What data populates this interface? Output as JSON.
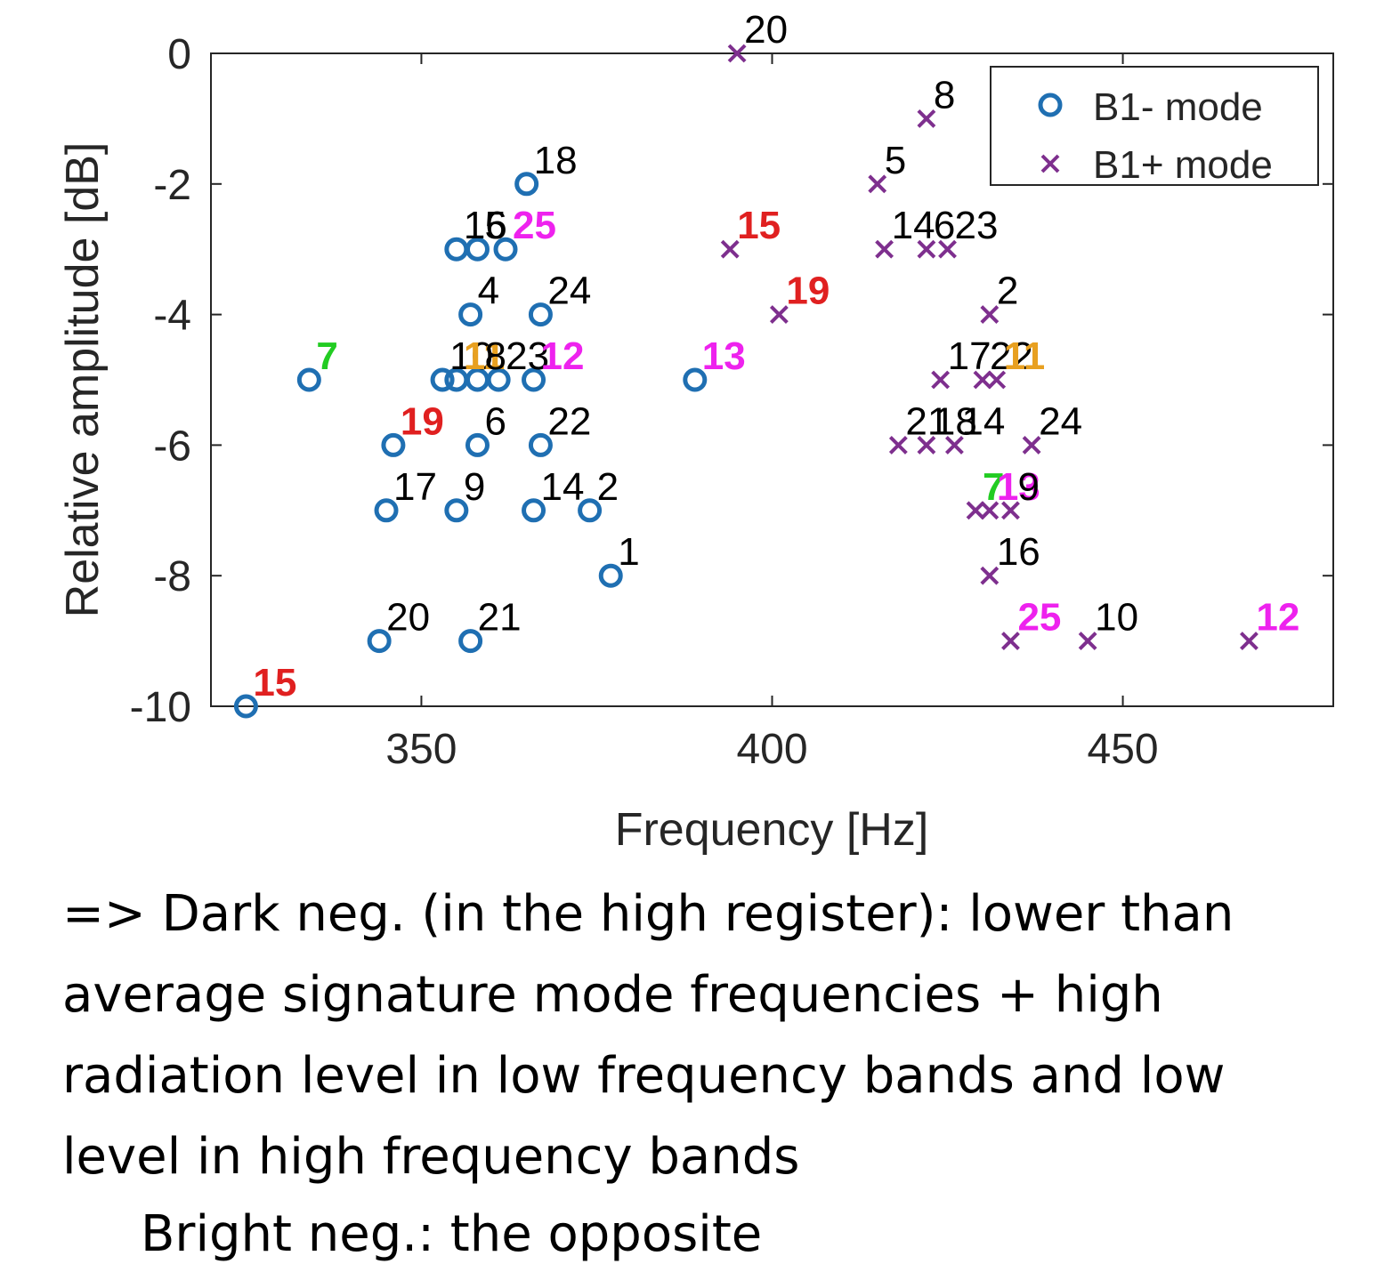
{
  "chart_data": {
    "type": "scatter",
    "xlabel": "Frequency [Hz]",
    "ylabel": "Relative amplitude [dB]",
    "xlim": [
      320,
      480
    ],
    "ylim": [
      -10,
      0
    ],
    "xticks": [
      350,
      400,
      450
    ],
    "yticks": [
      0,
      -2,
      -4,
      -6,
      -8,
      -10
    ],
    "grid": false,
    "legend_position": "top-right",
    "series": [
      {
        "name": "B1- mode",
        "marker": "circle",
        "color": "#1f6fb2",
        "points": [
          {
            "x": 325,
            "y": -10,
            "label": "15",
            "label_color": "#e02020",
            "label_bold": true
          },
          {
            "x": 334,
            "y": -5,
            "label": "7",
            "label_color": "#22cc22",
            "label_bold": true
          },
          {
            "x": 345,
            "y": -7,
            "label": "17",
            "label_color": "#000000",
            "label_bold": false
          },
          {
            "x": 346,
            "y": -6,
            "label": "19",
            "label_color": "#e02020",
            "label_bold": true
          },
          {
            "x": 344,
            "y": -9,
            "label": "20",
            "label_color": "#000000",
            "label_bold": false
          },
          {
            "x": 353,
            "y": -5,
            "label": "10",
            "label_color": "#000000",
            "label_bold": false
          },
          {
            "x": 355,
            "y": -5,
            "label": "11",
            "label_color": "#e8a020",
            "label_bold": true
          },
          {
            "x": 355,
            "y": -3,
            "label": "16",
            "label_color": "#000000",
            "label_bold": false
          },
          {
            "x": 358,
            "y": -3,
            "label": "5",
            "label_color": "#000000",
            "label_bold": false
          },
          {
            "x": 362,
            "y": -3,
            "label": "25",
            "label_color": "#ee22ee",
            "label_bold": true
          },
          {
            "x": 357,
            "y": -4,
            "label": "4",
            "label_color": "#000000",
            "label_bold": false
          },
          {
            "x": 358,
            "y": -5,
            "label": "8",
            "label_color": "#000000",
            "label_bold": false
          },
          {
            "x": 361,
            "y": -5,
            "label": "23",
            "label_color": "#000000",
            "label_bold": false
          },
          {
            "x": 366,
            "y": -5,
            "label": "12",
            "label_color": "#ee22ee",
            "label_bold": true
          },
          {
            "x": 365,
            "y": -2,
            "label": "18",
            "label_color": "#000000",
            "label_bold": false
          },
          {
            "x": 367,
            "y": -4,
            "label": "24",
            "label_color": "#000000",
            "label_bold": false
          },
          {
            "x": 358,
            "y": -6,
            "label": "6",
            "label_color": "#000000",
            "label_bold": false
          },
          {
            "x": 367,
            "y": -6,
            "label": "22",
            "label_color": "#000000",
            "label_bold": false
          },
          {
            "x": 355,
            "y": -7,
            "label": "9",
            "label_color": "#000000",
            "label_bold": false
          },
          {
            "x": 366,
            "y": -7,
            "label": "14",
            "label_color": "#000000",
            "label_bold": false
          },
          {
            "x": 374,
            "y": -7,
            "label": "2",
            "label_color": "#000000",
            "label_bold": false
          },
          {
            "x": 357,
            "y": -9,
            "label": "21",
            "label_color": "#000000",
            "label_bold": false
          },
          {
            "x": 377,
            "y": -8,
            "label": "1",
            "label_color": "#000000",
            "label_bold": false
          },
          {
            "x": 389,
            "y": -5,
            "label": "13",
            "label_color": "#ee22ee",
            "label_bold": true
          }
        ]
      },
      {
        "name": "B1+ mode",
        "marker": "x",
        "color": "#7e2f8e",
        "points": [
          {
            "x": 395,
            "y": 0,
            "label": "20",
            "label_color": "#000000",
            "label_bold": false
          },
          {
            "x": 394,
            "y": -3,
            "label": "15",
            "label_color": "#e02020",
            "label_bold": true
          },
          {
            "x": 401,
            "y": -4,
            "label": "19",
            "label_color": "#e02020",
            "label_bold": true
          },
          {
            "x": 415,
            "y": -2,
            "label": "5",
            "label_color": "#000000",
            "label_bold": false
          },
          {
            "x": 422,
            "y": -1,
            "label": "8",
            "label_color": "#000000",
            "label_bold": false
          },
          {
            "x": 416,
            "y": -3,
            "label": "14",
            "label_color": "#000000",
            "label_bold": false
          },
          {
            "x": 422,
            "y": -3,
            "label": "6",
            "label_color": "#000000",
            "label_bold": false
          },
          {
            "x": 425,
            "y": -3,
            "label": "23",
            "label_color": "#000000",
            "label_bold": false
          },
          {
            "x": 431,
            "y": -4,
            "label": "2",
            "label_color": "#000000",
            "label_bold": false
          },
          {
            "x": 424,
            "y": -5,
            "label": "17",
            "label_color": "#000000",
            "label_bold": false
          },
          {
            "x": 430,
            "y": -5,
            "label": "22",
            "label_color": "#000000",
            "label_bold": false
          },
          {
            "x": 432,
            "y": -5,
            "label": "11",
            "label_color": "#e8a020",
            "label_bold": true
          },
          {
            "x": 418,
            "y": -6,
            "label": "21",
            "label_color": "#000000",
            "label_bold": false
          },
          {
            "x": 422,
            "y": -6,
            "label": "18",
            "label_color": "#000000",
            "label_bold": false
          },
          {
            "x": 426,
            "y": -6,
            "label": "14",
            "label_color": "#000000",
            "label_bold": false
          },
          {
            "x": 437,
            "y": -6,
            "label": "24",
            "label_color": "#000000",
            "label_bold": false
          },
          {
            "x": 429,
            "y": -7,
            "label": "7",
            "label_color": "#22cc22",
            "label_bold": true
          },
          {
            "x": 431,
            "y": -7,
            "label": "13",
            "label_color": "#ee22ee",
            "label_bold": true
          },
          {
            "x": 434,
            "y": -7,
            "label": "9",
            "label_color": "#000000",
            "label_bold": false
          },
          {
            "x": 431,
            "y": -8,
            "label": "16",
            "label_color": "#000000",
            "label_bold": false
          },
          {
            "x": 434,
            "y": -9,
            "label": "25",
            "label_color": "#ee22ee",
            "label_bold": true
          },
          {
            "x": 445,
            "y": -9,
            "label": "10",
            "label_color": "#000000",
            "label_bold": false
          },
          {
            "x": 468,
            "y": -9,
            "label": "12",
            "label_color": "#ee22ee",
            "label_bold": true
          }
        ]
      }
    ]
  },
  "caption": {
    "line1": "=> Dark neg. (in the high register): lower than",
    "line2": "average signature mode frequencies + high",
    "line3": "radiation level in low frequency bands and low",
    "line4": "level in high frequency bands",
    "line5": "Bright neg.: the opposite"
  }
}
